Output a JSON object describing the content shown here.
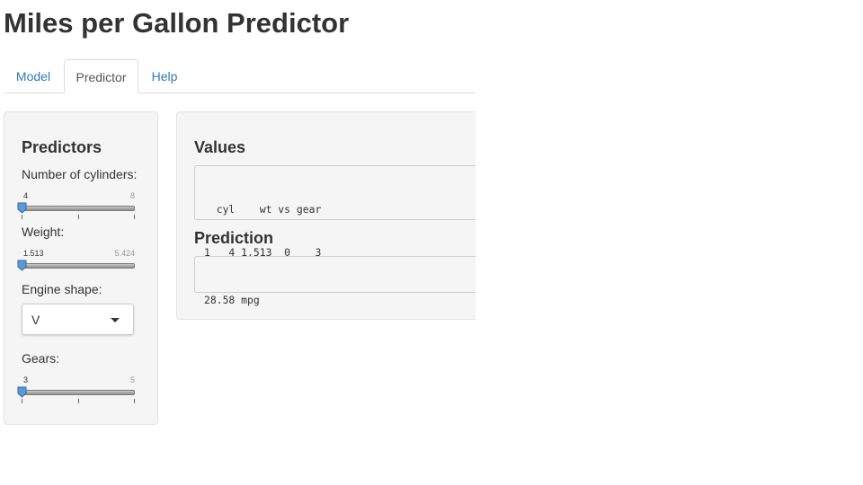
{
  "app": {
    "title": "Miles per Gallon Predictor"
  },
  "tabs": [
    {
      "label": "Model",
      "active": false
    },
    {
      "label": "Predictor",
      "active": true
    },
    {
      "label": "Help",
      "active": false
    }
  ],
  "sidebar": {
    "heading": "Predictors",
    "cylinders": {
      "label": "Number of cylinders:",
      "min": "4",
      "max": "8",
      "value": 4
    },
    "weight": {
      "label": "Weight:",
      "min": "1.513",
      "max": "5.424",
      "value": 1.513
    },
    "engine": {
      "label": "Engine shape:",
      "selected": "V"
    },
    "gears": {
      "label": "Gears:",
      "min": "3",
      "max": "5",
      "value": 3
    }
  },
  "main": {
    "values_heading": "Values",
    "values_table": {
      "header": "  cyl    wt vs gear",
      "row": "1   4 1.513  0    3"
    },
    "prediction_heading": "Prediction",
    "prediction_text": "28.58 mpg"
  },
  "colors": {
    "link": "#337ab7",
    "panel_bg": "#f5f5f5",
    "slider_handle": "#5b9bd5"
  },
  "icons": {
    "slider_handle": "slider-handle-icon",
    "select_arrow": "chevron-down-icon"
  }
}
